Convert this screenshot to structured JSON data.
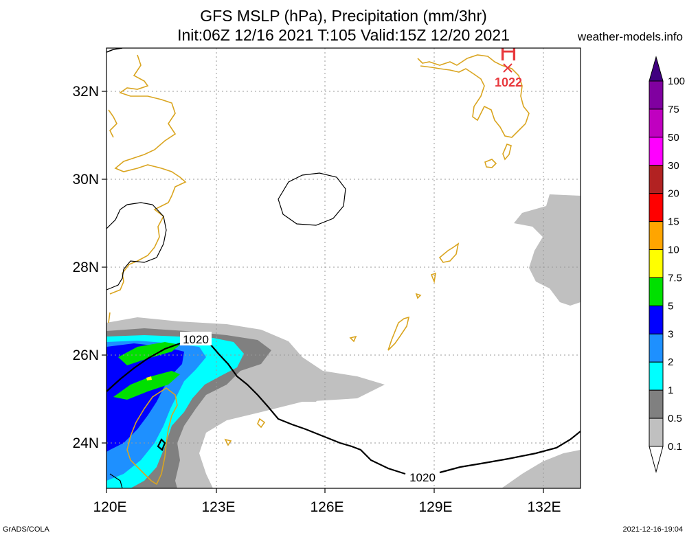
{
  "header": {
    "title_line1": "GFS MSLP (hPa), Precipitation (mm/3hr)",
    "title_line2": "Init:06Z 12/16 2021 T:105 Valid:15Z 12/20 2021",
    "site": "weather-models.info"
  },
  "map": {
    "lon_labels": [
      "120E",
      "123E",
      "126E",
      "129E",
      "132E"
    ],
    "lat_labels": [
      "32N",
      "30N",
      "28N",
      "26N",
      "24N"
    ],
    "high_symbol": "H",
    "high_value": "1022",
    "isobar_labels": [
      "1020",
      "1020"
    ]
  },
  "legend": {
    "levels": [
      "0.1",
      "0.5",
      "1",
      "2",
      "3",
      "5",
      "7.5",
      "10",
      "15",
      "20",
      "30",
      "50",
      "75",
      "100"
    ],
    "colors": [
      "#ffffff",
      "#c0c0c0",
      "#808080",
      "#00ffff",
      "#1e90ff",
      "#0000ff",
      "#00e000",
      "#ffff00",
      "#ffa500",
      "#ff0000",
      "#b22222",
      "#ff00ff",
      "#c000c0",
      "#8000a0",
      "#400080"
    ]
  },
  "colors": {
    "coast": "#daa520",
    "isobar": "#000000",
    "high": "#e8383d",
    "grid": "#999999"
  },
  "footer": {
    "left": "GrADS/COLA",
    "right": "2021-12-16-19:04"
  }
}
